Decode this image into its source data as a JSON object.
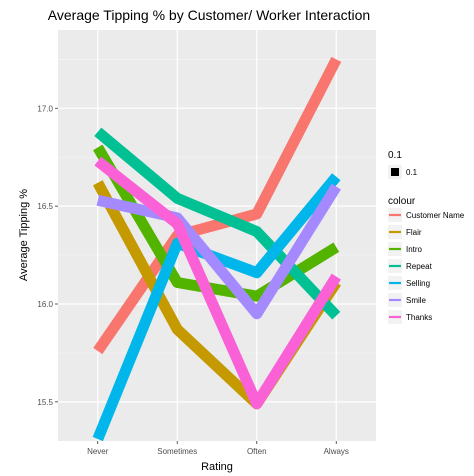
{
  "chart_data": {
    "type": "line",
    "title": "Average Tipping % by Customer/ Worker Interaction",
    "xlabel": "Rating",
    "ylabel": "Average Tipping %",
    "categories": [
      "Never",
      "Sometimes",
      "Often",
      "Always"
    ],
    "ylim": [
      15.3,
      17.4
    ],
    "yticks": [
      "15.5",
      "16.0",
      "16.5",
      "17.0"
    ],
    "grid": true,
    "legend_position": "right",
    "size_legend": {
      "title": "0.1",
      "label": "0.1"
    },
    "colour_legend_title": "colour",
    "series": [
      {
        "name": "Customer Name",
        "color": "#F8766D",
        "values": [
          15.76,
          16.35,
          16.46,
          17.25
        ]
      },
      {
        "name": "Flair",
        "color": "#C49A00",
        "values": [
          16.62,
          15.87,
          15.49,
          16.11
        ]
      },
      {
        "name": "Intro",
        "color": "#53B400",
        "values": [
          16.8,
          16.11,
          16.04,
          16.29
        ]
      },
      {
        "name": "Repeat",
        "color": "#00C094",
        "values": [
          16.88,
          16.54,
          16.37,
          15.94
        ]
      },
      {
        "name": "Selling",
        "color": "#00B6EB",
        "values": [
          15.31,
          16.31,
          16.16,
          16.65
        ]
      },
      {
        "name": "Smile",
        "color": "#A58AFF",
        "values": [
          16.53,
          16.44,
          15.95,
          16.6
        ]
      },
      {
        "name": "Thanks",
        "color": "#FB61D7",
        "values": [
          16.73,
          16.41,
          15.49,
          16.14
        ]
      }
    ]
  }
}
